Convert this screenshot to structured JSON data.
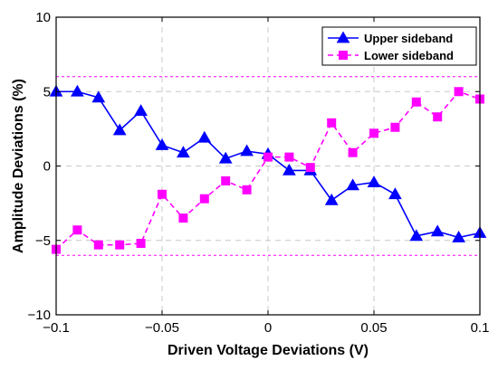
{
  "chart_data": {
    "type": "line",
    "xlabel": "Driven Voltage Deviations (V)",
    "ylabel": "Amplitude Deviations (%)",
    "xlim": [
      -0.1,
      0.1
    ],
    "ylim": [
      -10,
      10
    ],
    "xticks": [
      -0.1,
      -0.05,
      0,
      0.05,
      0.1
    ],
    "xtick_labels": [
      "−0.1",
      "−0.05",
      "0",
      "0.05",
      "0.1"
    ],
    "yticks": [
      10,
      5,
      0,
      -5,
      -10
    ],
    "ytick_labels": [
      "10",
      "5",
      "0",
      "−5",
      "−10"
    ],
    "grid": true,
    "legend_position": "top-right",
    "reference_lines": [
      6,
      -6
    ],
    "x": [
      -0.1,
      -0.09,
      -0.08,
      -0.07,
      -0.06,
      -0.05,
      -0.04,
      -0.03,
      -0.02,
      -0.01,
      0,
      0.01,
      0.02,
      0.03,
      0.04,
      0.05,
      0.06,
      0.07,
      0.08,
      0.09,
      0.1
    ],
    "series": [
      {
        "name": "Upper sideband",
        "color": "#0000ff",
        "marker": "triangle",
        "line_style": "solid",
        "values": [
          5.0,
          5.0,
          4.6,
          2.4,
          3.7,
          1.4,
          0.9,
          1.9,
          0.5,
          1.0,
          0.8,
          -0.3,
          -0.3,
          -2.3,
          -1.3,
          -1.1,
          -1.9,
          -4.7,
          -4.4,
          -4.8,
          -4.5
        ]
      },
      {
        "name": "Lower sideband",
        "color": "#ff00ff",
        "marker": "square",
        "line_style": "dashed",
        "values": [
          -5.6,
          -4.3,
          -5.3,
          -5.3,
          -5.2,
          -1.9,
          -3.5,
          -2.2,
          -1.0,
          -1.6,
          0.6,
          0.6,
          -0.1,
          2.9,
          0.9,
          2.2,
          2.6,
          4.3,
          3.3,
          5.0,
          4.5
        ]
      }
    ]
  }
}
